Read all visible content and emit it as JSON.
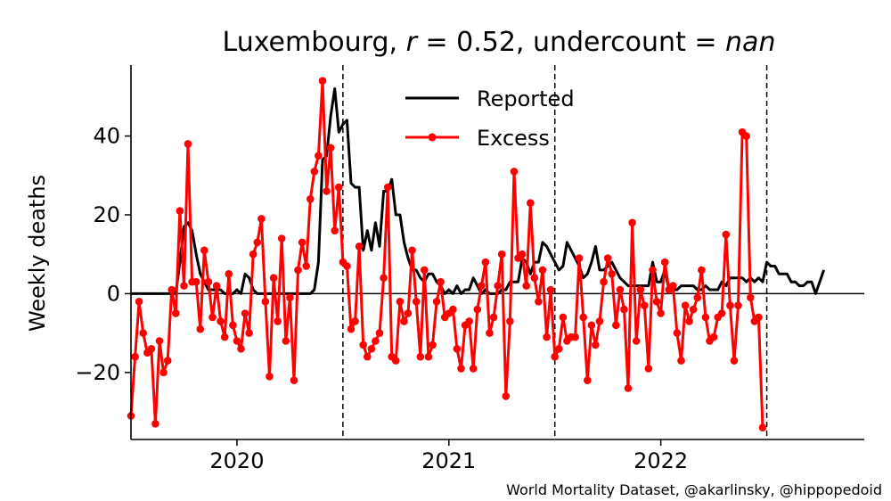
{
  "title": {
    "prefix": "Luxembourg, ",
    "r_var": "r",
    "r_part": " = 0.52, undercount = ",
    "nan": "nan"
  },
  "credit": "World Mortality Dataset, @akarlinsky, @hippopedoid",
  "colors": {
    "reported": "#000000",
    "excess": "#ff0000"
  },
  "chart_data": {
    "type": "line",
    "title": "Luxembourg, r = 0.52, undercount = nan",
    "xlabel": "",
    "ylabel": "Weekly deaths",
    "xlim": [
      2019.5,
      2022.96
    ],
    "ylim": [
      -37,
      58
    ],
    "x_ticks": [
      2020,
      2021,
      2022
    ],
    "x_tick_labels": [
      "2020",
      "2021",
      "2022"
    ],
    "y_ticks": [
      -20,
      0,
      20,
      40
    ],
    "y_tick_labels": [
      "−20",
      "0",
      "20",
      "40"
    ],
    "vlines_dashed": [
      2020.5,
      2021.5,
      2022.5
    ],
    "hline": 0,
    "grid": false,
    "legend_placement": "top-center",
    "series": [
      {
        "name": "Reported",
        "marker": false,
        "x_start": 2019.5,
        "x_step": 0.01923,
        "values": [
          0,
          0,
          0,
          0,
          0,
          0,
          0,
          0,
          0,
          0,
          0,
          0,
          8,
          17,
          18,
          16,
          10,
          5,
          3,
          1,
          1,
          1,
          1,
          0,
          0,
          0,
          1,
          0,
          5,
          4,
          1,
          0,
          0,
          0,
          0,
          0,
          0,
          0,
          0,
          0,
          0,
          0,
          0,
          0,
          0,
          1,
          8,
          34,
          35,
          45,
          52,
          41,
          43,
          44,
          28,
          27,
          27,
          11,
          16,
          11,
          18,
          12,
          26,
          26,
          29,
          20,
          20,
          13,
          9,
          6,
          6,
          4,
          3,
          5,
          5,
          3,
          2,
          0,
          1,
          0,
          2,
          0,
          1,
          1,
          4,
          2,
          0,
          1,
          0,
          0,
          0,
          1,
          1,
          3,
          3,
          3,
          9,
          8,
          5,
          8,
          8,
          13,
          12,
          10,
          8,
          6,
          7,
          13,
          11,
          9,
          7,
          4,
          5,
          8,
          12,
          6,
          6,
          7,
          8,
          6,
          4,
          3,
          2,
          2,
          2,
          2,
          2,
          2,
          8,
          3,
          3,
          6,
          1,
          1,
          1,
          2,
          2,
          2,
          2,
          1,
          1,
          2,
          1,
          1,
          1,
          3,
          2,
          4,
          4,
          4,
          4,
          3,
          4,
          3,
          4,
          3,
          8,
          7,
          7,
          5,
          5,
          5,
          3,
          3,
          2,
          2,
          3,
          3,
          0,
          3,
          6
        ]
      },
      {
        "name": "Excess",
        "marker": true,
        "x_start": 2019.5,
        "x_step": 0.01923,
        "values": [
          -31,
          -16,
          -2,
          -10,
          -15,
          -14,
          -33,
          -12,
          -20,
          -17,
          1,
          -5,
          21,
          2,
          38,
          3,
          3,
          -9,
          11,
          3,
          -6,
          2,
          -7,
          -11,
          5,
          -8,
          -12,
          -14,
          -5,
          -10,
          10,
          13,
          19,
          -2,
          -21,
          4,
          -7,
          14,
          -12,
          -1,
          -22,
          6,
          13,
          7,
          24,
          31,
          35,
          54,
          26,
          37,
          16,
          27,
          8,
          7,
          -9,
          -7,
          12,
          -13,
          -16,
          -14,
          -12,
          -10,
          4,
          27,
          -16,
          -17,
          -2,
          -7,
          -5,
          11,
          -2,
          -16,
          6,
          -16,
          -13,
          -2,
          3,
          -6,
          -5,
          -4,
          -14,
          -19,
          -8,
          -7,
          -19,
          -4,
          2,
          8,
          -10,
          -6,
          2,
          10,
          -26,
          -7,
          31,
          9,
          10,
          2,
          23,
          4,
          -2,
          6,
          -11,
          1,
          -16,
          -14,
          -6,
          -12,
          -11,
          -11,
          9,
          -6,
          -22,
          -8,
          -13,
          -7,
          3,
          9,
          5,
          -8,
          1,
          -4,
          -24,
          18,
          -12,
          1,
          -3,
          -19,
          6,
          -2,
          -5,
          8,
          1,
          2,
          -10,
          -17,
          -3,
          -7,
          -4,
          -1,
          6,
          -6,
          -12,
          -11,
          -6,
          -5,
          15,
          -3,
          -17,
          -3,
          41,
          40,
          -1,
          -7,
          -6,
          -34
        ]
      }
    ]
  }
}
